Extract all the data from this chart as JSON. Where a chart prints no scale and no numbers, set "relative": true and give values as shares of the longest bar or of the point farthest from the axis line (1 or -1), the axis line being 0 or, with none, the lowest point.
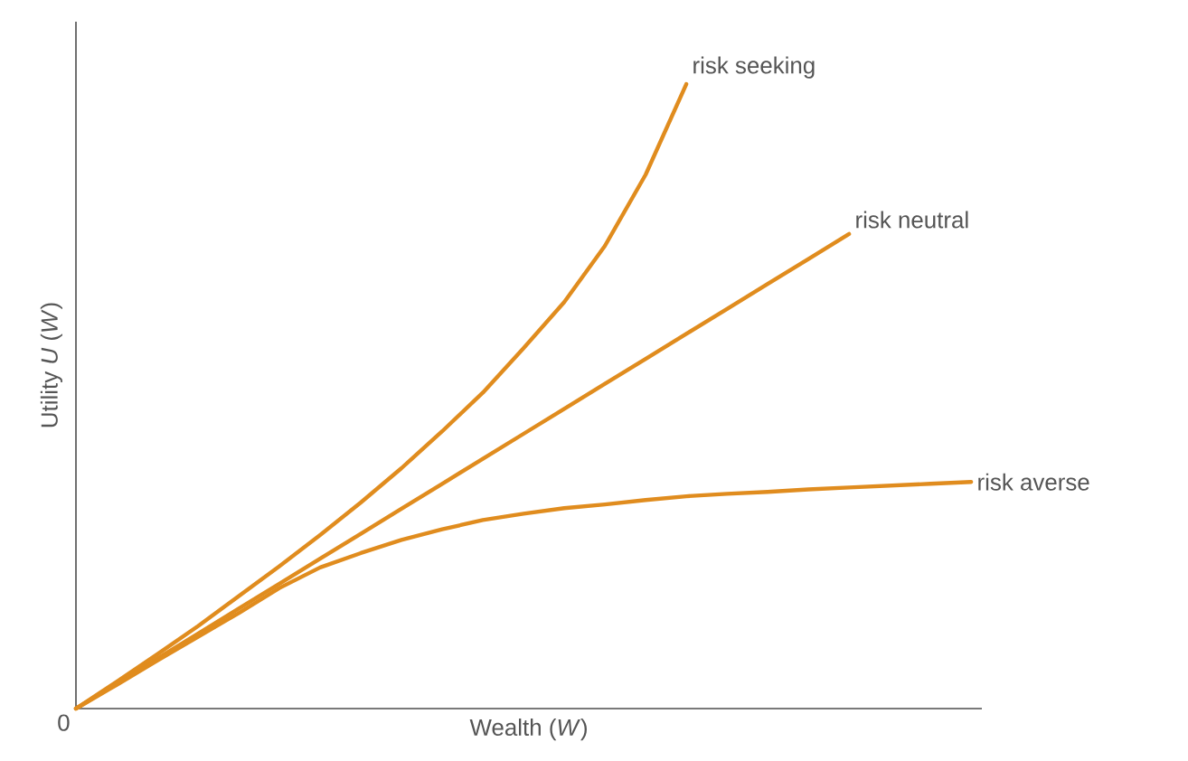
{
  "chart_data": {
    "type": "line",
    "relative": true,
    "xlabel": "Wealth (*W*)",
    "ylabel": "Utility *U* (*W*)",
    "annotations": [
      "0"
    ],
    "categories": [
      null,
      null,
      null,
      null,
      null,
      null,
      null,
      null,
      null,
      null,
      null,
      null,
      null,
      null,
      null,
      null,
      null,
      null,
      null,
      null,
      null,
      null,
      null
    ],
    "series": [
      {
        "name": "risk seeking",
        "color": "#e08c1e",
        "values": [
          0,
          0.043,
          0.087,
          0.132,
          0.18,
          0.228,
          0.278,
          0.33,
          0.385,
          0.444,
          0.506,
          0.577,
          0.651,
          0.741,
          0.855,
          1,
          null,
          null,
          null,
          null,
          null,
          null,
          null
        ]
      },
      {
        "name": "risk neutral",
        "color": "#e08c1e",
        "values": [
          0,
          0.04,
          0.08,
          0.12,
          0.16,
          0.2,
          0.24,
          0.28,
          0.32,
          0.36,
          0.4,
          0.44,
          0.48,
          0.52,
          0.56,
          0.6,
          0.64,
          0.68,
          0.72,
          0.76,
          null,
          null,
          null
        ]
      },
      {
        "name": "risk averse",
        "color": "#e08c1e",
        "values": [
          0,
          0.038,
          0.077,
          0.115,
          0.153,
          0.193,
          0.226,
          0.249,
          0.27,
          0.287,
          0.302,
          0.312,
          0.321,
          0.327,
          0.334,
          0.34,
          0.344,
          0.347,
          0.351,
          0.354,
          0.357,
          0.36,
          0.363
        ]
      }
    ]
  }
}
